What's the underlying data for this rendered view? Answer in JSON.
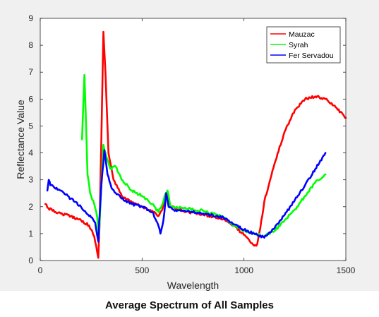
{
  "caption": "Average Spectrum of All Samples",
  "chart_data": {
    "type": "line",
    "xlabel": "Wavelength",
    "ylabel": "Reflectance Value",
    "xlim": [
      0,
      1500
    ],
    "ylim": [
      0,
      9
    ],
    "xticks": [
      0,
      500,
      1000,
      1500
    ],
    "yticks": [
      0,
      1,
      2,
      3,
      4,
      5,
      6,
      7,
      8,
      9
    ],
    "grid": false,
    "legend_position": "top-right",
    "series": [
      {
        "name": "Mauzac",
        "color": "#ff0000",
        "x": [
          25,
          40,
          60,
          100,
          150,
          200,
          240,
          265,
          280,
          285,
          292,
          300,
          310,
          320,
          335,
          360,
          400,
          450,
          500,
          550,
          580,
          600,
          610,
          622,
          640,
          700,
          800,
          900,
          950,
          1000,
          1030,
          1050,
          1065,
          1080,
          1100,
          1150,
          1200,
          1250,
          1300,
          1350,
          1400,
          1450,
          1500
        ],
        "y": [
          2.1,
          1.95,
          1.85,
          1.75,
          1.65,
          1.5,
          1.3,
          0.9,
          0.3,
          0.1,
          1.5,
          4.5,
          8.5,
          7.0,
          4.0,
          3.0,
          2.4,
          2.15,
          2.0,
          1.85,
          1.65,
          1.9,
          2.3,
          2.55,
          2.0,
          1.85,
          1.7,
          1.55,
          1.3,
          0.95,
          0.7,
          0.55,
          0.6,
          1.2,
          2.2,
          3.6,
          4.8,
          5.6,
          6.0,
          6.1,
          6.0,
          5.7,
          5.3
        ]
      },
      {
        "name": "Syrah",
        "color": "#00ff00",
        "x": [
          205,
          210,
          217,
          225,
          232,
          245,
          265,
          280,
          288,
          295,
          310,
          320,
          345,
          370,
          400,
          450,
          500,
          550,
          580,
          600,
          615,
          625,
          640,
          700,
          800,
          900,
          950,
          1000,
          1050,
          1100,
          1150,
          1200,
          1250,
          1300,
          1350,
          1400
        ],
        "y": [
          4.5,
          5.5,
          6.9,
          5.0,
          3.2,
          2.5,
          2.1,
          1.6,
          0.9,
          2.0,
          4.3,
          4.0,
          3.4,
          3.5,
          3.0,
          2.6,
          2.4,
          2.1,
          1.8,
          2.1,
          2.5,
          2.6,
          2.0,
          1.95,
          1.85,
          1.6,
          1.3,
          1.1,
          1.0,
          0.9,
          1.1,
          1.5,
          1.9,
          2.4,
          2.9,
          3.2
        ]
      },
      {
        "name": "Fer Servadou",
        "color": "#0000ff",
        "x": [
          35,
          42,
          50,
          65,
          100,
          150,
          200,
          250,
          270,
          285,
          290,
          300,
          315,
          330,
          350,
          400,
          450,
          500,
          550,
          580,
          590,
          605,
          618,
          630,
          650,
          700,
          800,
          900,
          950,
          1000,
          1050,
          1100,
          1150,
          1200,
          1250,
          1300,
          1350,
          1400
        ],
        "y": [
          2.6,
          3.0,
          2.8,
          2.75,
          2.6,
          2.3,
          2.0,
          1.6,
          1.4,
          0.7,
          1.5,
          2.8,
          4.1,
          3.2,
          2.7,
          2.3,
          2.1,
          2.0,
          1.8,
          1.3,
          1.0,
          1.5,
          2.5,
          2.0,
          1.9,
          1.85,
          1.75,
          1.6,
          1.35,
          1.15,
          1.0,
          0.85,
          1.2,
          1.7,
          2.25,
          2.8,
          3.4,
          4.0
        ]
      }
    ]
  }
}
